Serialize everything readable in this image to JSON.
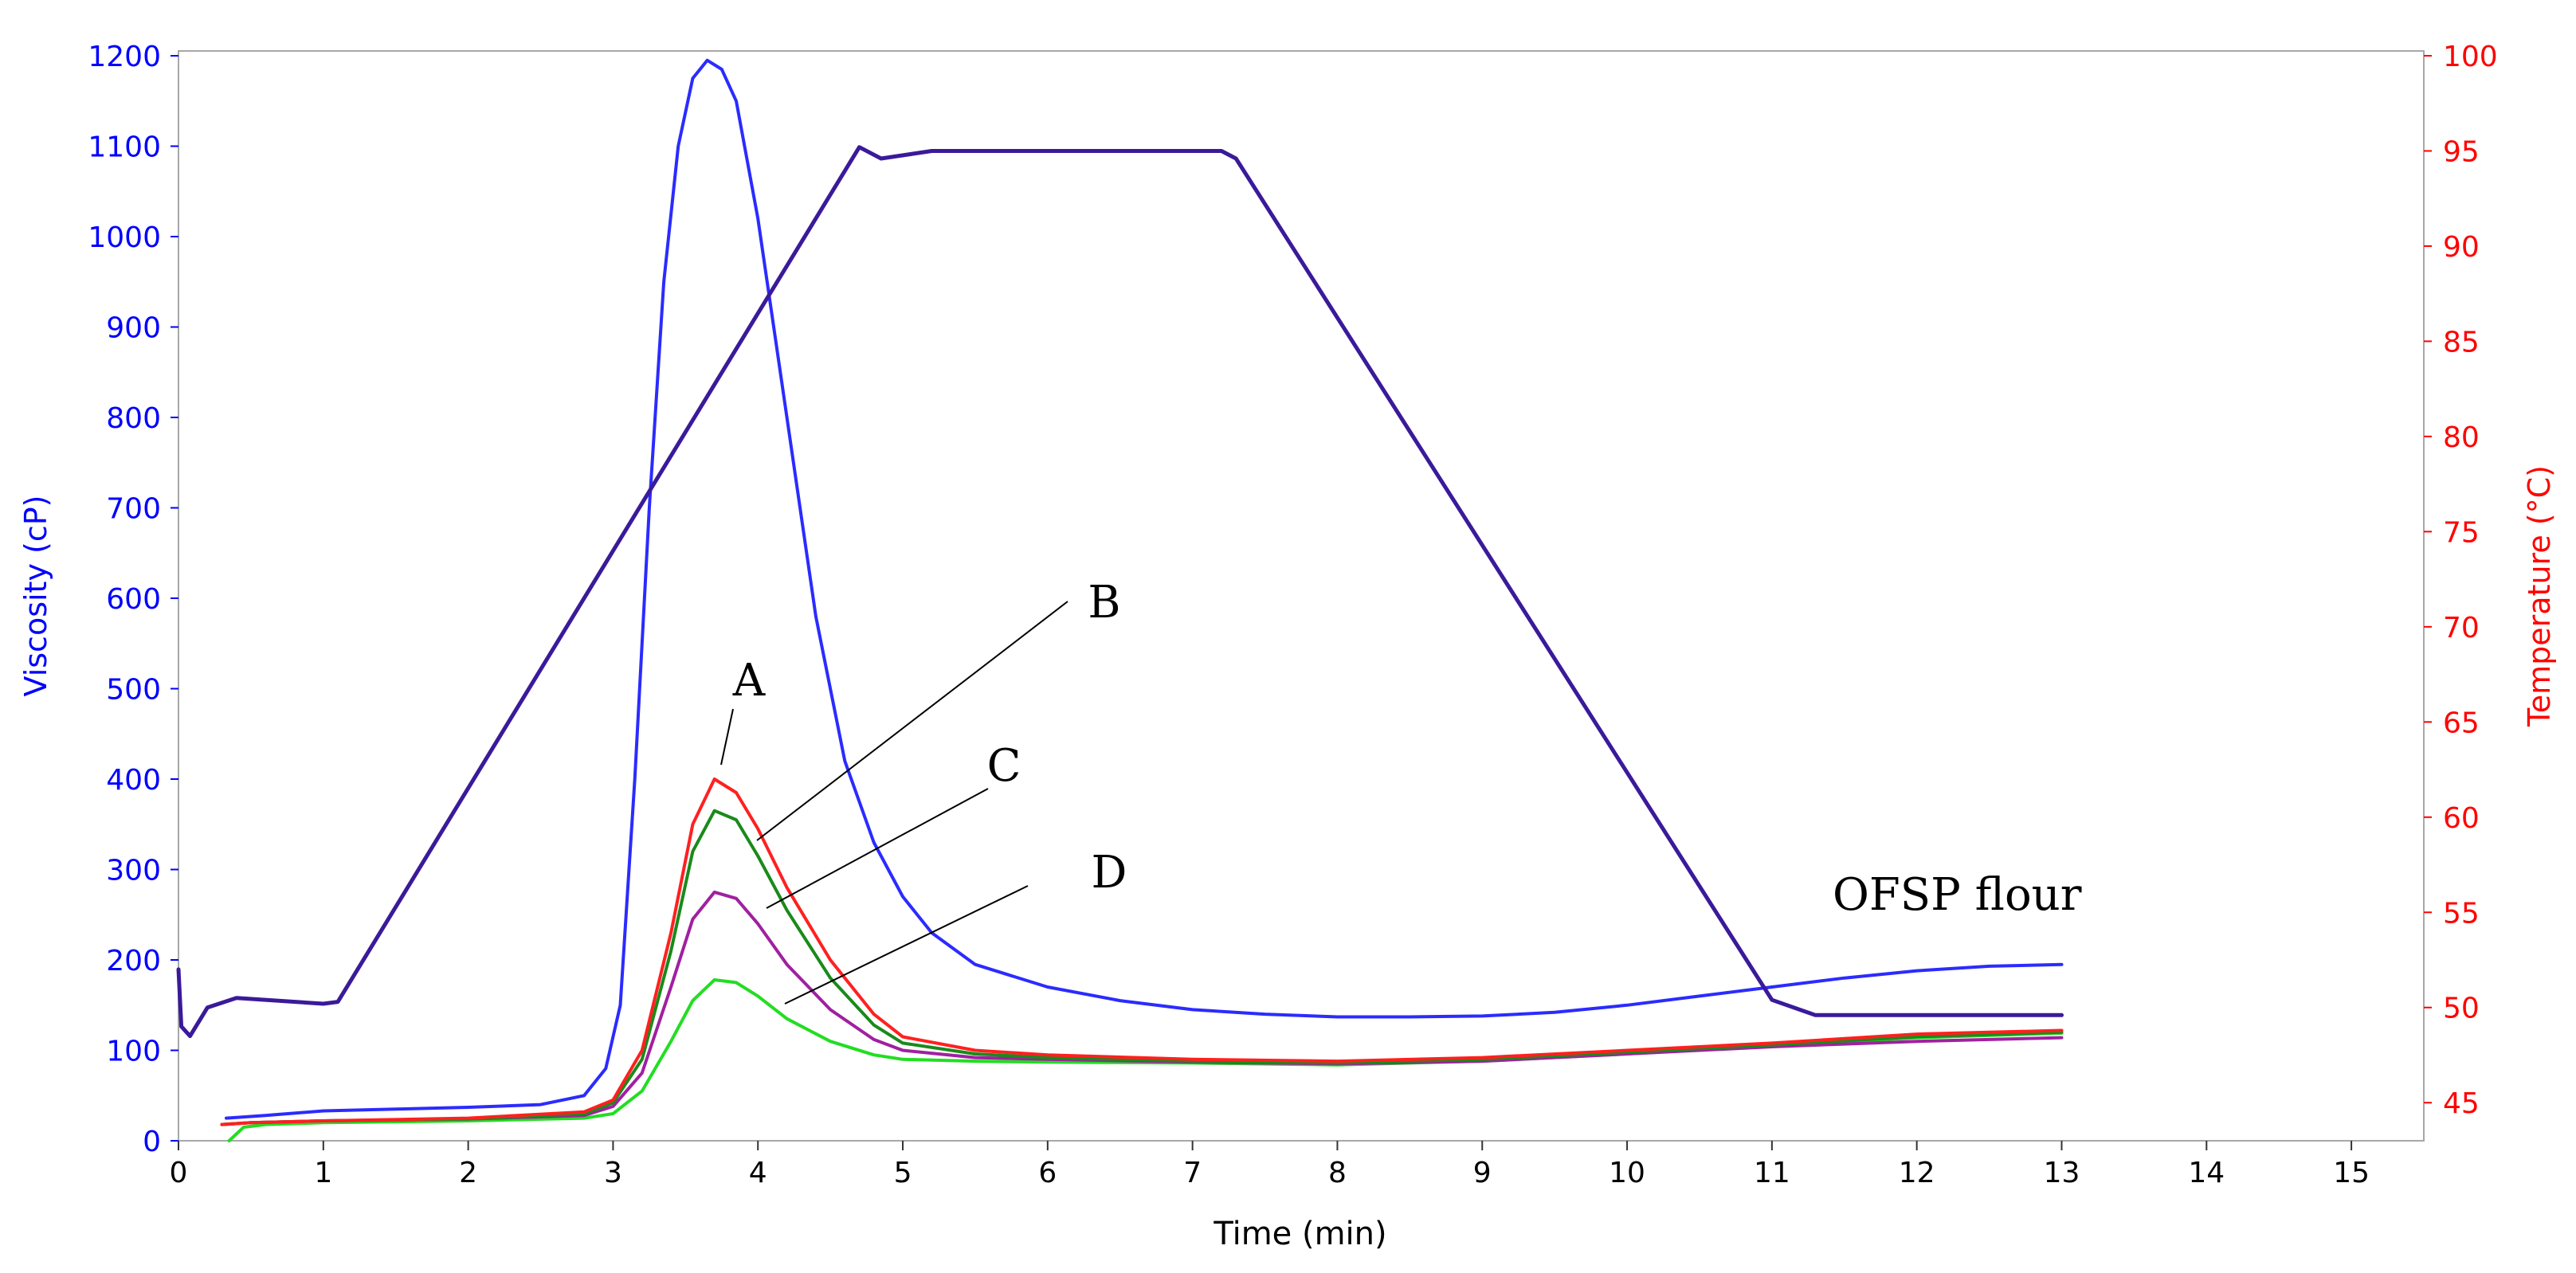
{
  "chart_data": {
    "type": "line",
    "xlabel": "Time  (min)",
    "ylabel_left": "Viscosity (cP)",
    "ylabel_right": "Temperature  (°C)",
    "x_range": [
      0,
      15.5
    ],
    "y_left_range": [
      0,
      1200
    ],
    "y_right_range": [
      43,
      100
    ],
    "x_ticks": [
      "0",
      "1",
      "2",
      "3",
      "4",
      "5",
      "6",
      "7",
      "8",
      "9",
      "10",
      "11",
      "12",
      "13",
      "14",
      "15"
    ],
    "y_left_ticks": [
      "0",
      "100",
      "200",
      "300",
      "400",
      "500",
      "600",
      "700",
      "800",
      "900",
      "1000",
      "1100",
      "1200"
    ],
    "y_right_ticks": [
      "45",
      "50",
      "55",
      "60",
      "65",
      "70",
      "75",
      "80",
      "85",
      "90",
      "95",
      "100"
    ],
    "colors": {
      "left_axis": "#0000ff",
      "right_axis": "#ff0000",
      "ofsp": "#2b2bff",
      "A": "#ff2020",
      "B": "#1a8a1a",
      "C": "#a020a0",
      "D": "#22dd22",
      "temperature": "#3a1a9a"
    },
    "annotations": [
      "A",
      "B",
      "C",
      "D",
      "OFSP flour"
    ],
    "series": [
      {
        "name": "OFSP flour",
        "axis": "left",
        "color": "#2b2bff",
        "points": [
          [
            0.33,
            25
          ],
          [
            0.6,
            28
          ],
          [
            1.0,
            33
          ],
          [
            1.5,
            35
          ],
          [
            2.0,
            37
          ],
          [
            2.5,
            40
          ],
          [
            2.8,
            50
          ],
          [
            2.95,
            80
          ],
          [
            3.05,
            150
          ],
          [
            3.15,
            400
          ],
          [
            3.25,
            700
          ],
          [
            3.35,
            950
          ],
          [
            3.45,
            1100
          ],
          [
            3.55,
            1175
          ],
          [
            3.65,
            1195
          ],
          [
            3.75,
            1185
          ],
          [
            3.85,
            1150
          ],
          [
            4.0,
            1020
          ],
          [
            4.2,
            800
          ],
          [
            4.4,
            580
          ],
          [
            4.6,
            420
          ],
          [
            4.8,
            330
          ],
          [
            5.0,
            270
          ],
          [
            5.2,
            230
          ],
          [
            5.5,
            195
          ],
          [
            6.0,
            170
          ],
          [
            6.5,
            155
          ],
          [
            7.0,
            145
          ],
          [
            7.5,
            140
          ],
          [
            8.0,
            137
          ],
          [
            8.5,
            137
          ],
          [
            9.0,
            138
          ],
          [
            9.5,
            142
          ],
          [
            10.0,
            150
          ],
          [
            10.5,
            160
          ],
          [
            11.0,
            170
          ],
          [
            11.5,
            180
          ],
          [
            12.0,
            188
          ],
          [
            12.5,
            193
          ],
          [
            13.0,
            195
          ]
        ]
      },
      {
        "name": "A",
        "axis": "left",
        "color": "#ff2020",
        "points": [
          [
            0.3,
            18
          ],
          [
            0.5,
            20
          ],
          [
            1.0,
            22
          ],
          [
            2.0,
            25
          ],
          [
            2.8,
            32
          ],
          [
            3.0,
            45
          ],
          [
            3.2,
            100
          ],
          [
            3.4,
            230
          ],
          [
            3.55,
            350
          ],
          [
            3.7,
            400
          ],
          [
            3.85,
            385
          ],
          [
            4.0,
            345
          ],
          [
            4.2,
            280
          ],
          [
            4.5,
            200
          ],
          [
            4.8,
            140
          ],
          [
            5.0,
            115
          ],
          [
            5.5,
            100
          ],
          [
            6.0,
            95
          ],
          [
            7.0,
            90
          ],
          [
            8.0,
            88
          ],
          [
            9.0,
            92
          ],
          [
            10.0,
            100
          ],
          [
            11.0,
            108
          ],
          [
            12.0,
            118
          ],
          [
            13.0,
            122
          ]
        ]
      },
      {
        "name": "B",
        "axis": "left",
        "color": "#1a8a1a",
        "points": [
          [
            0.3,
            18
          ],
          [
            0.5,
            20
          ],
          [
            1.0,
            22
          ],
          [
            2.0,
            24
          ],
          [
            2.8,
            30
          ],
          [
            3.0,
            42
          ],
          [
            3.2,
            90
          ],
          [
            3.4,
            210
          ],
          [
            3.55,
            320
          ],
          [
            3.7,
            365
          ],
          [
            3.85,
            355
          ],
          [
            4.0,
            315
          ],
          [
            4.2,
            255
          ],
          [
            4.5,
            180
          ],
          [
            4.8,
            128
          ],
          [
            5.0,
            108
          ],
          [
            5.5,
            96
          ],
          [
            6.0,
            92
          ],
          [
            7.0,
            88
          ],
          [
            8.0,
            86
          ],
          [
            9.0,
            90
          ],
          [
            10.0,
            98
          ],
          [
            11.0,
            106
          ],
          [
            12.0,
            115
          ],
          [
            13.0,
            120
          ]
        ]
      },
      {
        "name": "C",
        "axis": "left",
        "color": "#a020a0",
        "points": [
          [
            0.3,
            18
          ],
          [
            0.5,
            20
          ],
          [
            1.0,
            22
          ],
          [
            2.0,
            24
          ],
          [
            2.8,
            28
          ],
          [
            3.0,
            38
          ],
          [
            3.2,
            75
          ],
          [
            3.4,
            170
          ],
          [
            3.55,
            245
          ],
          [
            3.7,
            275
          ],
          [
            3.85,
            268
          ],
          [
            4.0,
            240
          ],
          [
            4.2,
            195
          ],
          [
            4.5,
            145
          ],
          [
            4.8,
            112
          ],
          [
            5.0,
            100
          ],
          [
            5.5,
            92
          ],
          [
            6.0,
            90
          ],
          [
            7.0,
            87
          ],
          [
            8.0,
            85
          ],
          [
            9.0,
            88
          ],
          [
            10.0,
            96
          ],
          [
            11.0,
            104
          ],
          [
            12.0,
            110
          ],
          [
            13.0,
            114
          ]
        ]
      },
      {
        "name": "D",
        "axis": "left",
        "color": "#22dd22",
        "points": [
          [
            0.35,
            0
          ],
          [
            0.45,
            15
          ],
          [
            0.6,
            18
          ],
          [
            1.0,
            20
          ],
          [
            2.0,
            22
          ],
          [
            2.8,
            25
          ],
          [
            3.0,
            30
          ],
          [
            3.2,
            55
          ],
          [
            3.4,
            110
          ],
          [
            3.55,
            155
          ],
          [
            3.7,
            178
          ],
          [
            3.85,
            175
          ],
          [
            4.0,
            160
          ],
          [
            4.2,
            135
          ],
          [
            4.5,
            110
          ],
          [
            4.8,
            95
          ],
          [
            5.0,
            90
          ],
          [
            5.5,
            88
          ],
          [
            6.0,
            87
          ],
          [
            7.0,
            86
          ],
          [
            8.0,
            84
          ],
          [
            9.0,
            88
          ],
          [
            10.0,
            96
          ],
          [
            11.0,
            105
          ],
          [
            12.0,
            114
          ],
          [
            13.0,
            119
          ]
        ]
      },
      {
        "name": "Temperature",
        "axis": "right",
        "color": "#3a1a9a",
        "points": [
          [
            0.0,
            52
          ],
          [
            0.02,
            49
          ],
          [
            0.08,
            48.5
          ],
          [
            0.2,
            50
          ],
          [
            0.4,
            50.5
          ],
          [
            1.0,
            50.2
          ],
          [
            1.1,
            50.3
          ],
          [
            4.7,
            95.2
          ],
          [
            4.85,
            94.6
          ],
          [
            5.2,
            95
          ],
          [
            7.2,
            95
          ],
          [
            7.3,
            94.6
          ],
          [
            11.0,
            50.4
          ],
          [
            11.3,
            49.6
          ],
          [
            13.0,
            49.6
          ]
        ]
      }
    ]
  }
}
